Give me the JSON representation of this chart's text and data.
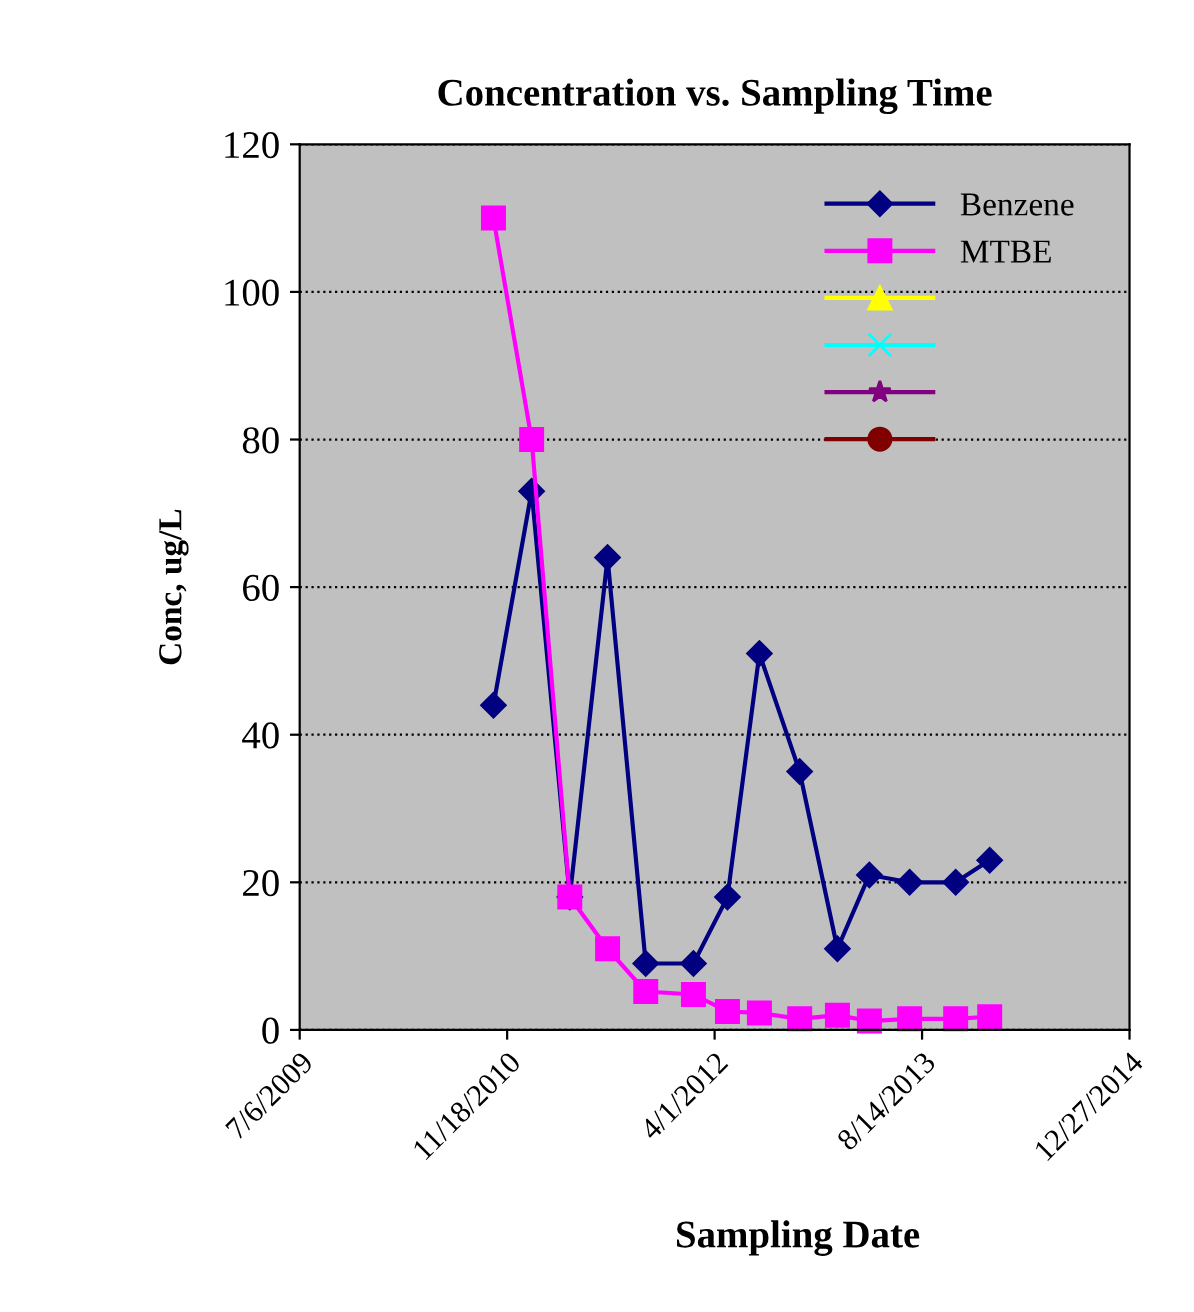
{
  "chart_data": {
    "type": "line",
    "title": "Concentration vs. Sampling Time",
    "xlabel": "Sampling Date",
    "ylabel": "Conc, ug/L",
    "x": [
      "2010-10-16",
      "2011-01-16",
      "2011-04-18",
      "2011-07-18",
      "2011-10-18",
      "2012-02-10",
      "2012-05-02",
      "2012-07-18",
      "2012-10-23",
      "2013-01-22",
      "2013-04-09",
      "2013-07-15",
      "2013-11-03",
      "2014-01-24"
    ],
    "series": [
      {
        "name": "Benzene",
        "color": "#000080",
        "marker": "diamond",
        "values": [
          44,
          73,
          18,
          64,
          9,
          9,
          18,
          51,
          35,
          11,
          21,
          20,
          20,
          23
        ]
      },
      {
        "name": "MTBE",
        "color": "#ff00ff",
        "marker": "square",
        "values": [
          110,
          80,
          18,
          11,
          5.2,
          4.8,
          2.5,
          2.3,
          1.5,
          2,
          1.2,
          1.5,
          1.5,
          1.8
        ]
      },
      {
        "color": "#ffff00",
        "marker": "triangle",
        "values": [
          null,
          null,
          null,
          null,
          null,
          null,
          null,
          null,
          null,
          null,
          null,
          null,
          null,
          null
        ]
      },
      {
        "color": "#00ffff",
        "marker": "cross",
        "values": [
          null,
          null,
          null,
          null,
          null,
          null,
          null,
          null,
          null,
          null,
          null,
          null,
          null,
          null
        ]
      },
      {
        "color": "#800080",
        "marker": "star",
        "values": [
          null,
          null,
          null,
          null,
          null,
          null,
          null,
          null,
          null,
          null,
          null,
          null,
          null,
          null
        ]
      },
      {
        "color": "#800000",
        "marker": "circle",
        "values": [
          null,
          null,
          null,
          null,
          null,
          null,
          null,
          null,
          null,
          null,
          null,
          null,
          null,
          null
        ]
      }
    ],
    "xlim": [
      "2009-07-06",
      "2014-12-27"
    ],
    "xticks": [
      {
        "value": "2009-07-06",
        "label": "7/6/2009"
      },
      {
        "value": "2010-11-18",
        "label": "11/18/2010"
      },
      {
        "value": "2012-04-01",
        "label": "4/1/2012"
      },
      {
        "value": "2013-08-14",
        "label": "8/14/2013"
      },
      {
        "value": "2014-12-27",
        "label": "12/27/2014"
      }
    ],
    "ylim": [
      0,
      120
    ],
    "yticks": [
      0,
      20,
      40,
      60,
      80,
      100,
      120
    ],
    "grid": "y",
    "legend": "top right",
    "line_style": "solid"
  }
}
